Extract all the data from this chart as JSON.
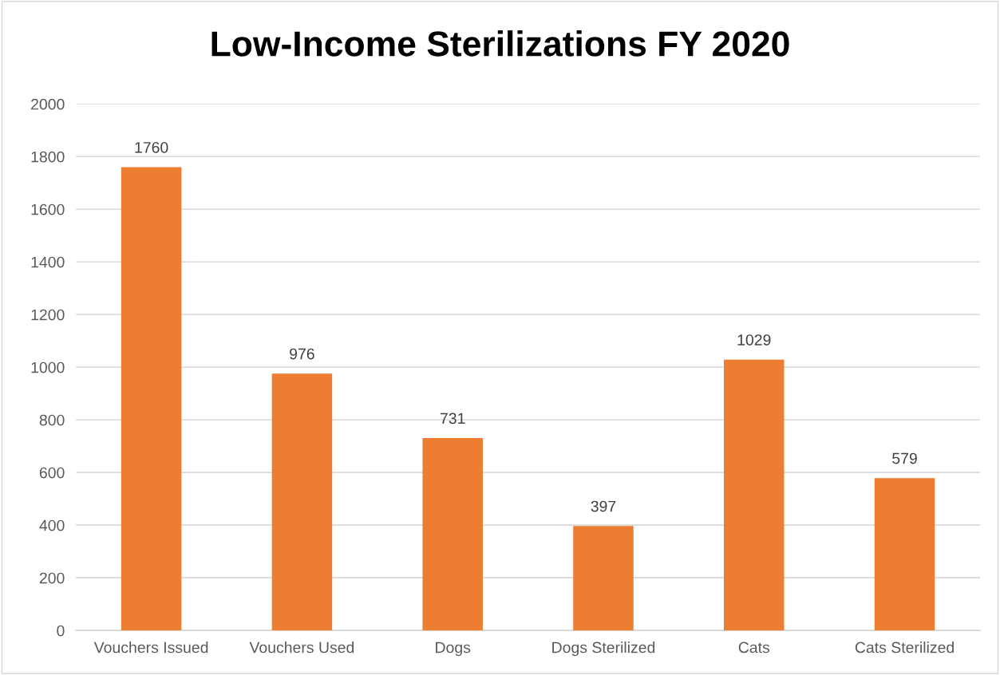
{
  "chart_data": {
    "type": "bar",
    "title": "Low-Income Sterilizations FY 2020",
    "categories": [
      "Vouchers Issued",
      "Vouchers Used",
      "Dogs",
      "Dogs Sterilized",
      "Cats",
      "Cats Sterilized"
    ],
    "values": [
      1760,
      976,
      731,
      397,
      1029,
      579
    ],
    "color": "#ed7d31",
    "ylim": [
      0,
      2000
    ],
    "yticks": [
      0,
      200,
      400,
      600,
      800,
      1000,
      1200,
      1400,
      1600,
      1800,
      2000
    ],
    "grid": "y",
    "data_labels": true
  }
}
